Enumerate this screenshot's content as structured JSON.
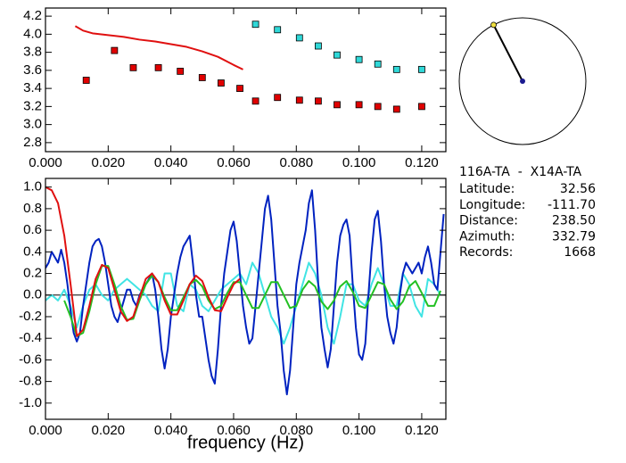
{
  "chart_data": [
    {
      "type": "scatter",
      "xlim": [
        0,
        0.1277
      ],
      "ylim": [
        2.7,
        4.29
      ],
      "xticks": [
        {
          "value": 0,
          "label": "0.000"
        },
        {
          "value": 0.02,
          "label": "0.020"
        },
        {
          "value": 0.04,
          "label": "0.040"
        },
        {
          "value": 0.06,
          "label": "0.060"
        },
        {
          "value": 0.08,
          "label": "0.080"
        },
        {
          "value": 0.1,
          "label": "0.100"
        },
        {
          "value": 0.12,
          "label": "0.120"
        }
      ],
      "yticks": [
        {
          "value": 2.8,
          "label": "2.8"
        },
        {
          "value": 3.0,
          "label": "3.0"
        },
        {
          "value": 3.2,
          "label": "3.2"
        },
        {
          "value": 3.4,
          "label": "3.4"
        },
        {
          "value": 3.6,
          "label": "3.6"
        },
        {
          "value": 3.8,
          "label": "3.8"
        },
        {
          "value": 4.0,
          "label": "4.0"
        },
        {
          "value": 4.2,
          "label": "4.2"
        }
      ],
      "series": [
        {
          "type": "scatter",
          "color": "#e00000",
          "x": [
            0.013,
            0.022,
            0.028,
            0.036,
            0.043,
            0.05,
            0.056,
            0.062,
            0.067,
            0.074,
            0.081,
            0.087,
            0.093,
            0.1,
            0.106,
            0.112,
            0.12
          ],
          "values": [
            3.49,
            3.82,
            3.63,
            3.63,
            3.59,
            3.52,
            3.46,
            3.4,
            3.26,
            3.3,
            3.27,
            3.26,
            3.22,
            3.22,
            3.2,
            3.17,
            3.2
          ]
        },
        {
          "type": "scatter",
          "color": "#30d8d8",
          "x": [
            0.067,
            0.074,
            0.081,
            0.087,
            0.093,
            0.1,
            0.106,
            0.112,
            0.12
          ],
          "values": [
            4.11,
            4.05,
            3.96,
            3.87,
            3.77,
            3.72,
            3.67,
            3.61,
            3.61
          ]
        },
        {
          "type": "line",
          "color": "#e01010",
          "x": [
            0.0095,
            0.012,
            0.015,
            0.02,
            0.025,
            0.03,
            0.035,
            0.04,
            0.045,
            0.05,
            0.055,
            0.06,
            0.063
          ],
          "values": [
            4.09,
            4.04,
            4.01,
            3.99,
            3.97,
            3.94,
            3.92,
            3.89,
            3.86,
            3.81,
            3.75,
            3.66,
            3.61
          ]
        }
      ]
    },
    {
      "type": "line",
      "x_label": "frequency (Hz)",
      "xlim": [
        0,
        0.1277
      ],
      "ylim": [
        -1.15,
        1.08
      ],
      "hline": 0,
      "xticks": [
        {
          "value": 0,
          "label": "0.000"
        },
        {
          "value": 0.02,
          "label": "0.020"
        },
        {
          "value": 0.04,
          "label": "0.040"
        },
        {
          "value": 0.06,
          "label": "0.060"
        },
        {
          "value": 0.08,
          "label": "0.080"
        },
        {
          "value": 0.1,
          "label": "0.100"
        },
        {
          "value": 0.12,
          "label": "0.120"
        }
      ],
      "yticks": [
        {
          "value": 1.0,
          "label": "1.0"
        },
        {
          "value": 0.8,
          "label": "0.8"
        },
        {
          "value": 0.6,
          "label": "0.6"
        },
        {
          "value": 0.4,
          "label": "0.4"
        },
        {
          "value": 0.2,
          "label": "0.2"
        },
        {
          "value": 0,
          "label": "0.0"
        },
        {
          "value": -0.2,
          "label": "-0.2"
        },
        {
          "value": -0.4,
          "label": "-0.4"
        },
        {
          "value": -0.6,
          "label": "-0.6"
        },
        {
          "value": -0.8,
          "label": "-0.8"
        },
        {
          "value": -1.0,
          "label": "-1.0"
        }
      ],
      "series": [
        {
          "type": "line",
          "color": "#40e4e4",
          "x": [
            0,
            0.002,
            0.004,
            0.006,
            0.008,
            0.01,
            0.012,
            0.014,
            0.016,
            0.018,
            0.02,
            0.022,
            0.024,
            0.026,
            0.028,
            0.03,
            0.032,
            0.034,
            0.036,
            0.038,
            0.04,
            0.042,
            0.044,
            0.046,
            0.048,
            0.05,
            0.052,
            0.054,
            0.056,
            0.058,
            0.06,
            0.062,
            0.064,
            0.066,
            0.068,
            0.07,
            0.072,
            0.074,
            0.076,
            0.078,
            0.08,
            0.082,
            0.084,
            0.086,
            0.088,
            0.09,
            0.092,
            0.094,
            0.096,
            0.098,
            0.1,
            0.102,
            0.104,
            0.106,
            0.108,
            0.11,
            0.112,
            0.114,
            0.116,
            0.118,
            0.12,
            0.122,
            0.124,
            0.126
          ],
          "values": [
            -0.05,
            0,
            -0.05,
            0.05,
            -0.1,
            -0.3,
            -0.1,
            0.05,
            0.1,
            0,
            -0.05,
            0.05,
            0.1,
            0.15,
            0.1,
            0.05,
            0,
            -0.1,
            -0.15,
            0.2,
            0.2,
            -0.1,
            -0.15,
            0.1,
            0.05,
            -0.1,
            -0.15,
            -0.05,
            0.05,
            0.1,
            0.15,
            0.2,
            0.1,
            0.3,
            0.2,
            0,
            -0.2,
            -0.3,
            -0.45,
            -0.3,
            -0.1,
            0.1,
            0.3,
            0.2,
            0,
            -0.3,
            -0.45,
            -0.2,
            0.1,
            0.1,
            -0.05,
            -0.1,
            0.1,
            0.25,
            0.1,
            -0.1,
            -0.1,
            0.2,
            0.1,
            -0.1,
            -0.2,
            0.15,
            0.1,
            0
          ]
        },
        {
          "type": "line",
          "color": "#0022c0",
          "x": [
            0,
            0.001,
            0.002,
            0.003,
            0.004,
            0.005,
            0.006,
            0.007,
            0.008,
            0.009,
            0.01,
            0.011,
            0.012,
            0.013,
            0.014,
            0.015,
            0.016,
            0.017,
            0.018,
            0.019,
            0.02,
            0.021,
            0.022,
            0.023,
            0.024,
            0.025,
            0.026,
            0.027,
            0.028,
            0.029,
            0.03,
            0.031,
            0.032,
            0.033,
            0.034,
            0.035,
            0.036,
            0.037,
            0.038,
            0.039,
            0.04,
            0.041,
            0.042,
            0.043,
            0.044,
            0.045,
            0.046,
            0.047,
            0.048,
            0.049,
            0.05,
            0.051,
            0.052,
            0.053,
            0.054,
            0.055,
            0.056,
            0.057,
            0.058,
            0.059,
            0.06,
            0.061,
            0.062,
            0.063,
            0.064,
            0.065,
            0.066,
            0.067,
            0.068,
            0.069,
            0.07,
            0.071,
            0.072,
            0.073,
            0.074,
            0.075,
            0.076,
            0.077,
            0.078,
            0.079,
            0.08,
            0.081,
            0.082,
            0.083,
            0.084,
            0.085,
            0.086,
            0.087,
            0.088,
            0.089,
            0.09,
            0.091,
            0.092,
            0.093,
            0.094,
            0.095,
            0.096,
            0.097,
            0.098,
            0.099,
            0.1,
            0.101,
            0.102,
            0.103,
            0.104,
            0.105,
            0.106,
            0.107,
            0.108,
            0.109,
            0.11,
            0.111,
            0.112,
            0.113,
            0.114,
            0.115,
            0.116,
            0.117,
            0.118,
            0.119,
            0.12,
            0.121,
            0.122,
            0.123,
            0.124,
            0.125,
            0.126,
            0.127
          ],
          "values": [
            0.25,
            0.3,
            0.4,
            0.35,
            0.3,
            0.42,
            0.3,
            0.1,
            -0.15,
            -0.35,
            -0.43,
            -0.35,
            -0.1,
            0.1,
            0.3,
            0.45,
            0.5,
            0.52,
            0.45,
            0.3,
            0.1,
            -0.1,
            -0.2,
            -0.25,
            -0.15,
            -0.05,
            0.05,
            0.05,
            -0.05,
            -0.1,
            0,
            0.05,
            0.1,
            0.15,
            0.2,
            0.05,
            -0.2,
            -0.5,
            -0.68,
            -0.5,
            -0.2,
            0,
            0.2,
            0.35,
            0.45,
            0.5,
            0.55,
            0.3,
            0,
            -0.2,
            -0.2,
            -0.4,
            -0.6,
            -0.75,
            -0.82,
            -0.5,
            -0.1,
            0.2,
            0.4,
            0.6,
            0.68,
            0.5,
            0.2,
            -0.1,
            -0.3,
            -0.45,
            -0.4,
            -0.1,
            0.2,
            0.5,
            0.8,
            0.92,
            0.7,
            0.3,
            -0.1,
            -0.35,
            -0.7,
            -0.92,
            -0.7,
            -0.3,
            0.1,
            0.3,
            0.45,
            0.6,
            0.85,
            0.97,
            0.6,
            0.1,
            -0.3,
            -0.5,
            -0.67,
            -0.5,
            -0.1,
            0.3,
            0.55,
            0.65,
            0.7,
            0.55,
            0.1,
            -0.3,
            -0.55,
            -0.6,
            -0.45,
            0,
            0.4,
            0.7,
            0.78,
            0.5,
            0.1,
            -0.2,
            -0.35,
            -0.45,
            -0.3,
            0,
            0.2,
            0.3,
            0.25,
            0.2,
            0.25,
            0.3,
            0.2,
            0.35,
            0.45,
            0.3,
            0.1,
            0.05,
            0.4,
            0.75
          ]
        },
        {
          "type": "line",
          "color": "#22c022",
          "x": [
            0.006,
            0.008,
            0.01,
            0.012,
            0.014,
            0.016,
            0.018,
            0.02,
            0.022,
            0.024,
            0.026,
            0.028,
            0.03,
            0.032,
            0.034,
            0.036,
            0.038,
            0.04,
            0.042,
            0.044,
            0.046,
            0.048,
            0.05,
            0.052,
            0.054,
            0.056,
            0.058,
            0.06,
            0.062,
            0.064,
            0.066,
            0.068,
            0.07,
            0.072,
            0.074,
            0.076,
            0.078,
            0.08,
            0.082,
            0.084,
            0.086,
            0.088,
            0.09,
            0.092,
            0.094,
            0.096,
            0.098,
            0.1,
            0.102,
            0.104,
            0.106,
            0.108,
            0.11,
            0.112,
            0.114,
            0.116,
            0.118,
            0.12,
            0.122,
            0.124,
            0.126
          ],
          "values": [
            -0.05,
            -0.2,
            -0.38,
            -0.35,
            -0.15,
            0.1,
            0.27,
            0.27,
            0.1,
            -0.1,
            -0.23,
            -0.22,
            -0.05,
            0.1,
            0.18,
            0.12,
            -0.02,
            -0.14,
            -0.14,
            -0.02,
            0.1,
            0.14,
            0.08,
            -0.05,
            -0.13,
            -0.1,
            0.02,
            0.12,
            0.12,
            0,
            -0.12,
            -0.12,
            0,
            0.12,
            0.12,
            0,
            -0.12,
            -0.1,
            0.05,
            0.13,
            0.08,
            -0.06,
            -0.13,
            -0.05,
            0.08,
            0.13,
            0.03,
            -0.1,
            -0.12,
            0,
            0.12,
            0.1,
            -0.04,
            -0.13,
            -0.06,
            0.08,
            0.13,
            0.02,
            -0.1,
            -0.1,
            0.04
          ]
        },
        {
          "type": "line",
          "color": "#e01010",
          "x": [
            0,
            0.002,
            0.004,
            0.006,
            0.008,
            0.01,
            0.012,
            0.014,
            0.016,
            0.018,
            0.02,
            0.022,
            0.024,
            0.026,
            0.028,
            0.03,
            0.032,
            0.034,
            0.036,
            0.038,
            0.04,
            0.042,
            0.044,
            0.046,
            0.048,
            0.05,
            0.052,
            0.054,
            0.056,
            0.058,
            0.06,
            0.062
          ],
          "values": [
            1.0,
            0.97,
            0.85,
            0.55,
            0.1,
            -0.38,
            -0.32,
            -0.1,
            0.15,
            0.28,
            0.25,
            0.05,
            -0.15,
            -0.24,
            -0.2,
            -0.02,
            0.15,
            0.2,
            0.12,
            -0.05,
            -0.18,
            -0.18,
            -0.05,
            0.1,
            0.18,
            0.13,
            -0.02,
            -0.14,
            -0.15,
            -0.02,
            0.1,
            0.15
          ]
        }
      ]
    }
  ],
  "info": {
    "title": "116A-TA  -  X14A-TA",
    "rows": [
      {
        "label": "Latitude:",
        "value": "32.56"
      },
      {
        "label": "Longitude:",
        "value": "-111.70"
      },
      {
        "label": "Distance:",
        "value": "238.50"
      },
      {
        "label": "Azimuth:",
        "value": "332.79"
      },
      {
        "label": "Records:",
        "value": "1668"
      }
    ]
  }
}
